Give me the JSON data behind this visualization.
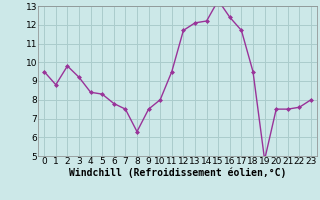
{
  "hours": [
    0,
    1,
    2,
    3,
    4,
    5,
    6,
    7,
    8,
    9,
    10,
    11,
    12,
    13,
    14,
    15,
    16,
    17,
    18,
    19,
    20,
    21,
    22,
    23
  ],
  "values": [
    9.5,
    8.8,
    9.8,
    9.2,
    8.4,
    8.3,
    7.8,
    7.5,
    6.3,
    7.5,
    8.0,
    9.5,
    11.7,
    12.1,
    12.2,
    13.3,
    12.4,
    11.7,
    9.5,
    4.8,
    7.5,
    7.5,
    7.6,
    8.0
  ],
  "line_color": "#993399",
  "marker": "D",
  "marker_size": 2,
  "bg_color": "#cce8e8",
  "grid_color": "#aacccc",
  "xlabel": "Windchill (Refroidissement éolien,°C)",
  "ylim": [
    5,
    13
  ],
  "xlim": [
    -0.5,
    23.5
  ],
  "yticks": [
    5,
    6,
    7,
    8,
    9,
    10,
    11,
    12,
    13
  ],
  "xticks": [
    0,
    1,
    2,
    3,
    4,
    5,
    6,
    7,
    8,
    9,
    10,
    11,
    12,
    13,
    14,
    15,
    16,
    17,
    18,
    19,
    20,
    21,
    22,
    23
  ],
  "tick_fontsize": 6.5,
  "xlabel_fontsize": 7,
  "line_width": 1.0
}
